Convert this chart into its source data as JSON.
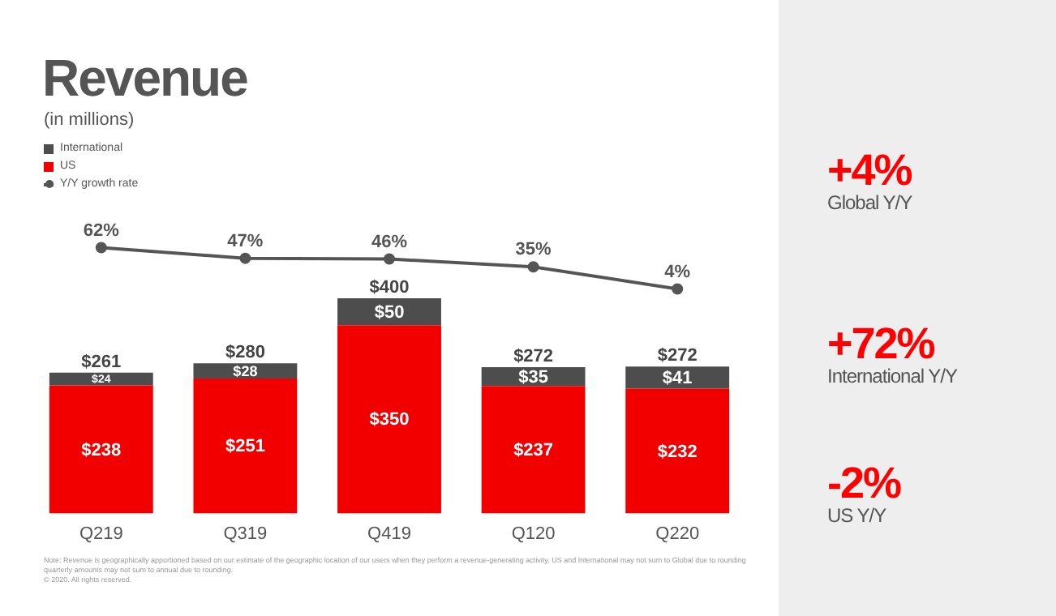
{
  "chart_data": [
    {
      "type": "line",
      "title": "Revenue",
      "subtitle": "(in millions)",
      "categories": [
        null,
        null,
        null,
        null,
        null
      ],
      "tick_labels": false,
      "grid": false,
      "legend": "top left",
      "marker": "circle",
      "series": [
        {
          "name": "Y/Y growth rate",
          "color": "#555555",
          "values": [
            62,
            47,
            46,
            35,
            4
          ],
          "value_labels": [
            "62%",
            "47%",
            "46%",
            "35%",
            "4%"
          ]
        }
      ]
    },
    {
      "type": "bar",
      "categories": [
        "Q219",
        "Q319",
        "Q419",
        "Q120",
        "Q220"
      ],
      "stacked": true,
      "tick_labels": "x",
      "grid": false,
      "legend": "top left",
      "series": [
        {
          "name": "US",
          "color": "#f20000",
          "values": [
            238,
            251,
            350,
            237,
            232
          ],
          "value_labels": [
            "$238",
            "$251",
            "$350",
            "$237",
            "$232"
          ]
        },
        {
          "name": "International",
          "color": "#4d4d4d",
          "values": [
            24,
            28,
            50,
            35,
            41
          ],
          "value_labels": [
            "$24",
            "$28",
            "$50",
            "$35",
            "$41"
          ]
        }
      ],
      "totals": [
        "$261",
        "$280",
        "$400",
        "$272",
        "$272"
      ],
      "annotations": [
        "+4%",
        "Global Y/Y",
        "+72%",
        "International Y/Y",
        "-2%",
        "US Y/Y",
        "Note: Revenue is geographically apportioned based on our estimate of the geographic location of our users when they perform a revenue-generating activity. US and International may not sum to Global due to rounding quarterly amounts may not sum to annual due to rounding.",
        "© 2020. All rights reserved."
      ]
    }
  ]
}
